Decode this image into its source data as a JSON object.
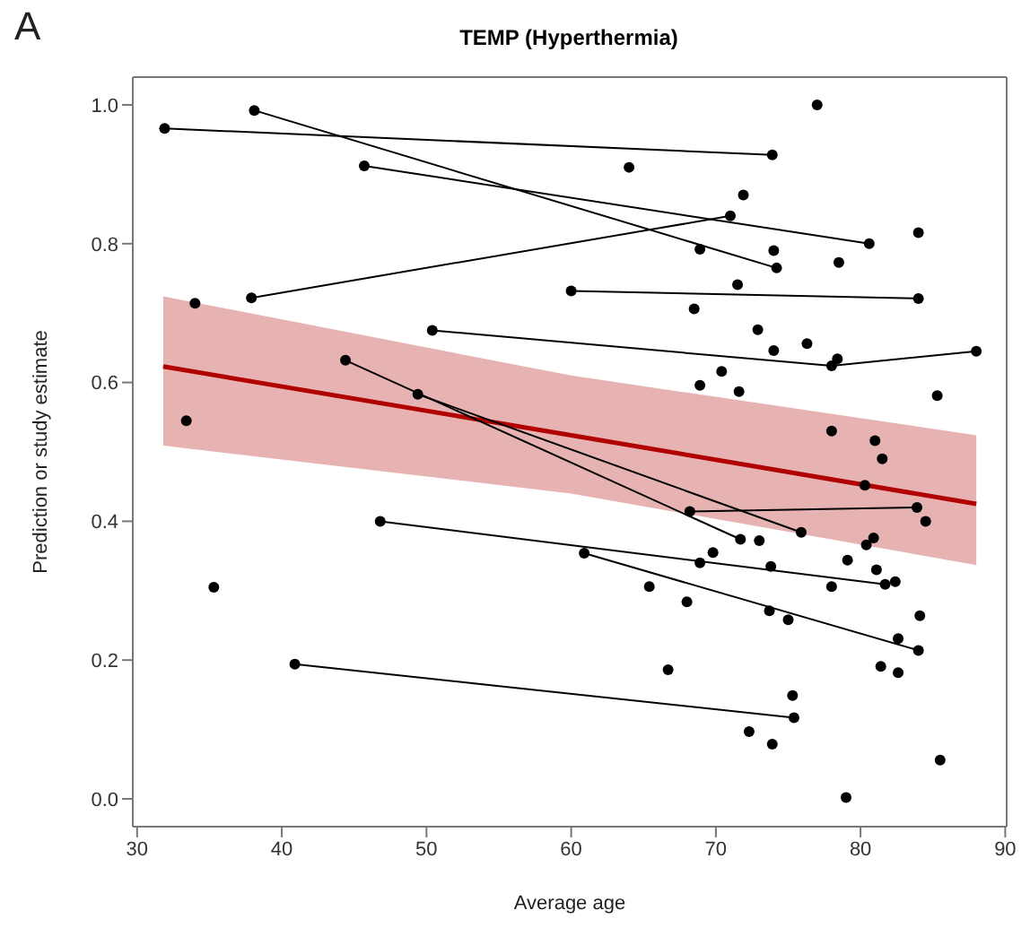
{
  "chart_data": {
    "type": "scatter",
    "title": "TEMP (Hyperthermia)",
    "xlabel": "Average age",
    "ylabel": "Prediction or study estimate",
    "annotations": [
      "A"
    ],
    "xlim": [
      29.7,
      90.1
    ],
    "ylim": [
      -0.04,
      1.04
    ],
    "xticks": [
      30,
      40,
      50,
      60,
      70,
      80,
      90
    ],
    "yticks": [
      {
        "value": 0,
        "label": "0.0"
      },
      0.2,
      0.4,
      0.6,
      0.8,
      {
        "value": 1,
        "label": "1.0"
      }
    ],
    "marker": "circle",
    "series": [
      {
        "type": "line",
        "color": "#b00000",
        "marker": "none",
        "x": [
          31.8,
          60,
          88
        ],
        "values": [
          0.623,
          0.524,
          0.425
        ],
        "lower": [
          0.509,
          0.44,
          0.337
        ],
        "upper": [
          0.724,
          0.61,
          0.524
        ]
      },
      {
        "type": "line",
        "color": "#000000",
        "x": [
          31.9,
          73.9
        ],
        "values": [
          0.966,
          0.928
        ]
      },
      {
        "type": "line",
        "color": "#000000",
        "x": [
          38.1,
          74.2
        ],
        "values": [
          0.992,
          0.765
        ]
      },
      {
        "type": "line",
        "color": "#000000",
        "x": [
          45.7,
          80.6
        ],
        "values": [
          0.912,
          0.8
        ]
      },
      {
        "type": "line",
        "color": "#000000",
        "x": [
          37.9,
          71.0
        ],
        "values": [
          0.722,
          0.84
        ]
      },
      {
        "type": "line",
        "color": "#000000",
        "x": [
          60.0,
          84.0
        ],
        "values": [
          0.732,
          0.721
        ]
      },
      {
        "type": "line",
        "color": "#000000",
        "x": [
          50.4,
          78.0,
          88.0
        ],
        "values": [
          0.675,
          0.624,
          0.645
        ]
      },
      {
        "type": "line",
        "color": "#000000",
        "x": [
          44.4,
          71.7
        ],
        "values": [
          0.632,
          0.374
        ]
      },
      {
        "type": "line",
        "color": "#000000",
        "x": [
          49.4,
          75.9
        ],
        "values": [
          0.583,
          0.384
        ]
      },
      {
        "type": "line",
        "color": "#000000",
        "x": [
          68.2,
          83.9
        ],
        "values": [
          0.414,
          0.42
        ]
      },
      {
        "type": "line",
        "color": "#000000",
        "x": [
          46.8,
          81.7
        ],
        "values": [
          0.4,
          0.309
        ]
      },
      {
        "type": "line",
        "color": "#000000",
        "x": [
          60.9,
          84.0
        ],
        "values": [
          0.354,
          0.214
        ]
      },
      {
        "type": "line",
        "color": "#000000",
        "x": [
          40.9,
          75.4
        ],
        "values": [
          0.194,
          0.117
        ]
      },
      {
        "color": "#000000",
        "x": [
          34.0,
          33.4,
          35.3,
          64,
          77,
          71.9,
          68.9,
          74.0,
          78.5,
          84.0,
          71.5,
          68.5,
          72.9,
          74.0,
          76.3,
          78.4,
          70.4,
          68.9,
          71.6,
          85.3,
          78.0,
          81.0,
          81.5,
          80.3,
          84.5,
          73.0,
          80.4,
          80.9,
          69.8,
          68.9,
          73.8,
          79.1,
          81.1,
          82.4,
          65.4,
          68.0,
          78.0,
          73.7,
          75.0,
          84.1,
          82.6,
          81.4,
          82.6,
          66.7,
          75.3,
          72.3,
          73.9,
          85.5,
          79.0
        ],
        "values": [
          0.714,
          0.545,
          0.305,
          0.91,
          1.0,
          0.87,
          0.792,
          0.79,
          0.773,
          0.816,
          0.741,
          0.706,
          0.676,
          0.646,
          0.656,
          0.634,
          0.616,
          0.596,
          0.587,
          0.581,
          0.53,
          0.516,
          0.49,
          0.452,
          0.4,
          0.372,
          0.366,
          0.376,
          0.355,
          0.34,
          0.335,
          0.344,
          0.33,
          0.313,
          0.306,
          0.284,
          0.306,
          0.271,
          0.258,
          0.264,
          0.231,
          0.191,
          0.182,
          0.186,
          0.149,
          0.097,
          0.079,
          0.056,
          0.002
        ]
      }
    ]
  }
}
